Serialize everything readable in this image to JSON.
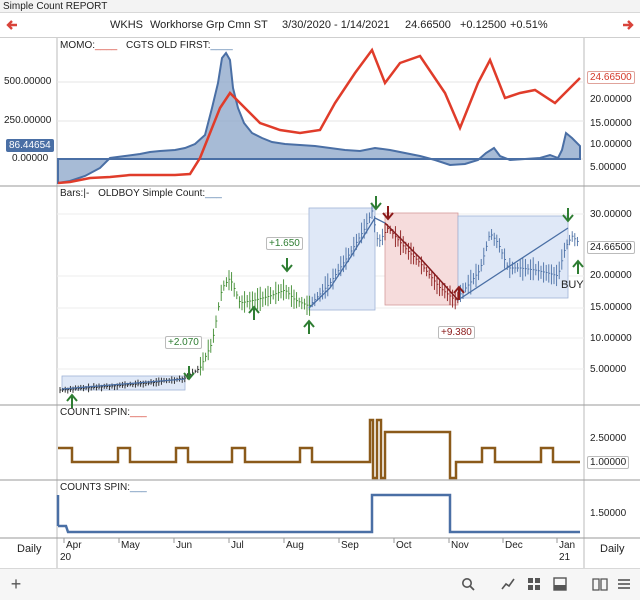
{
  "window": {
    "title": "Simple Count REPORT"
  },
  "header": {
    "symbol": "WKHS",
    "name": "Workhorse Grp Cmn ST",
    "date_range": "3/30/2020 - 1/14/2021",
    "price": "24.66500",
    "change": "+0.12500",
    "change_pct": "+0.51%"
  },
  "panes": {
    "momo": {
      "label1": "MOMO:",
      "label1_swatch": "____",
      "label2": "CGTS OLD FIRST:",
      "label2_swatch": "____",
      "left_ticks": [
        "500.00000",
        "250.00000",
        "0.00000"
      ],
      "left_tag": "86.44654",
      "right_ticks": [
        "20.00000",
        "15.00000",
        "10.00000",
        "5.00000"
      ],
      "right_tag": "24.66500"
    },
    "bars": {
      "label1": "Bars:",
      "label1_swatch": "|-",
      "label2": "OLDBOY Simple Count:",
      "label2_swatch": "___",
      "right_ticks": [
        "30.00000",
        "20.00000",
        "15.00000",
        "10.00000",
        "5.00000"
      ],
      "right_tag": "24.66500",
      "annotations": {
        "a1": "+2.070",
        "a2": "+1.650",
        "a3": "+9.380",
        "buy": "BUY"
      }
    },
    "count1": {
      "label": "COUNT1 SPIN:",
      "swatch": "___",
      "right_ticks": [
        "2.50000"
      ],
      "right_tag": "1.00000"
    },
    "count3": {
      "label": "COUNT3 SPIN:",
      "swatch": "___",
      "right_ticks": [
        "1.50000"
      ]
    }
  },
  "time_axis": {
    "period_left": "Daily",
    "period_right": "Daily",
    "months": [
      "Apr",
      "May",
      "Jun",
      "Jul",
      "Aug",
      "Sep",
      "Oct",
      "Nov",
      "Dec",
      "Jan"
    ],
    "year_start": "20",
    "year_end": "21"
  },
  "colors": {
    "red": "#e03c2a",
    "blue": "#4a6fa5",
    "green": "#2e8b2e",
    "darkred": "#8b1a1a",
    "brown": "#8b5a1a",
    "range_blue": "#dfe8f7",
    "range_red": "#f6dcdc"
  },
  "toolbar": {
    "add": "add-icon",
    "search": "search-icon",
    "draw": "trend-line-icon",
    "grid": "grid-icon",
    "panel": "panel-icon",
    "book": "book-icon",
    "menu": "menu-icon"
  }
}
